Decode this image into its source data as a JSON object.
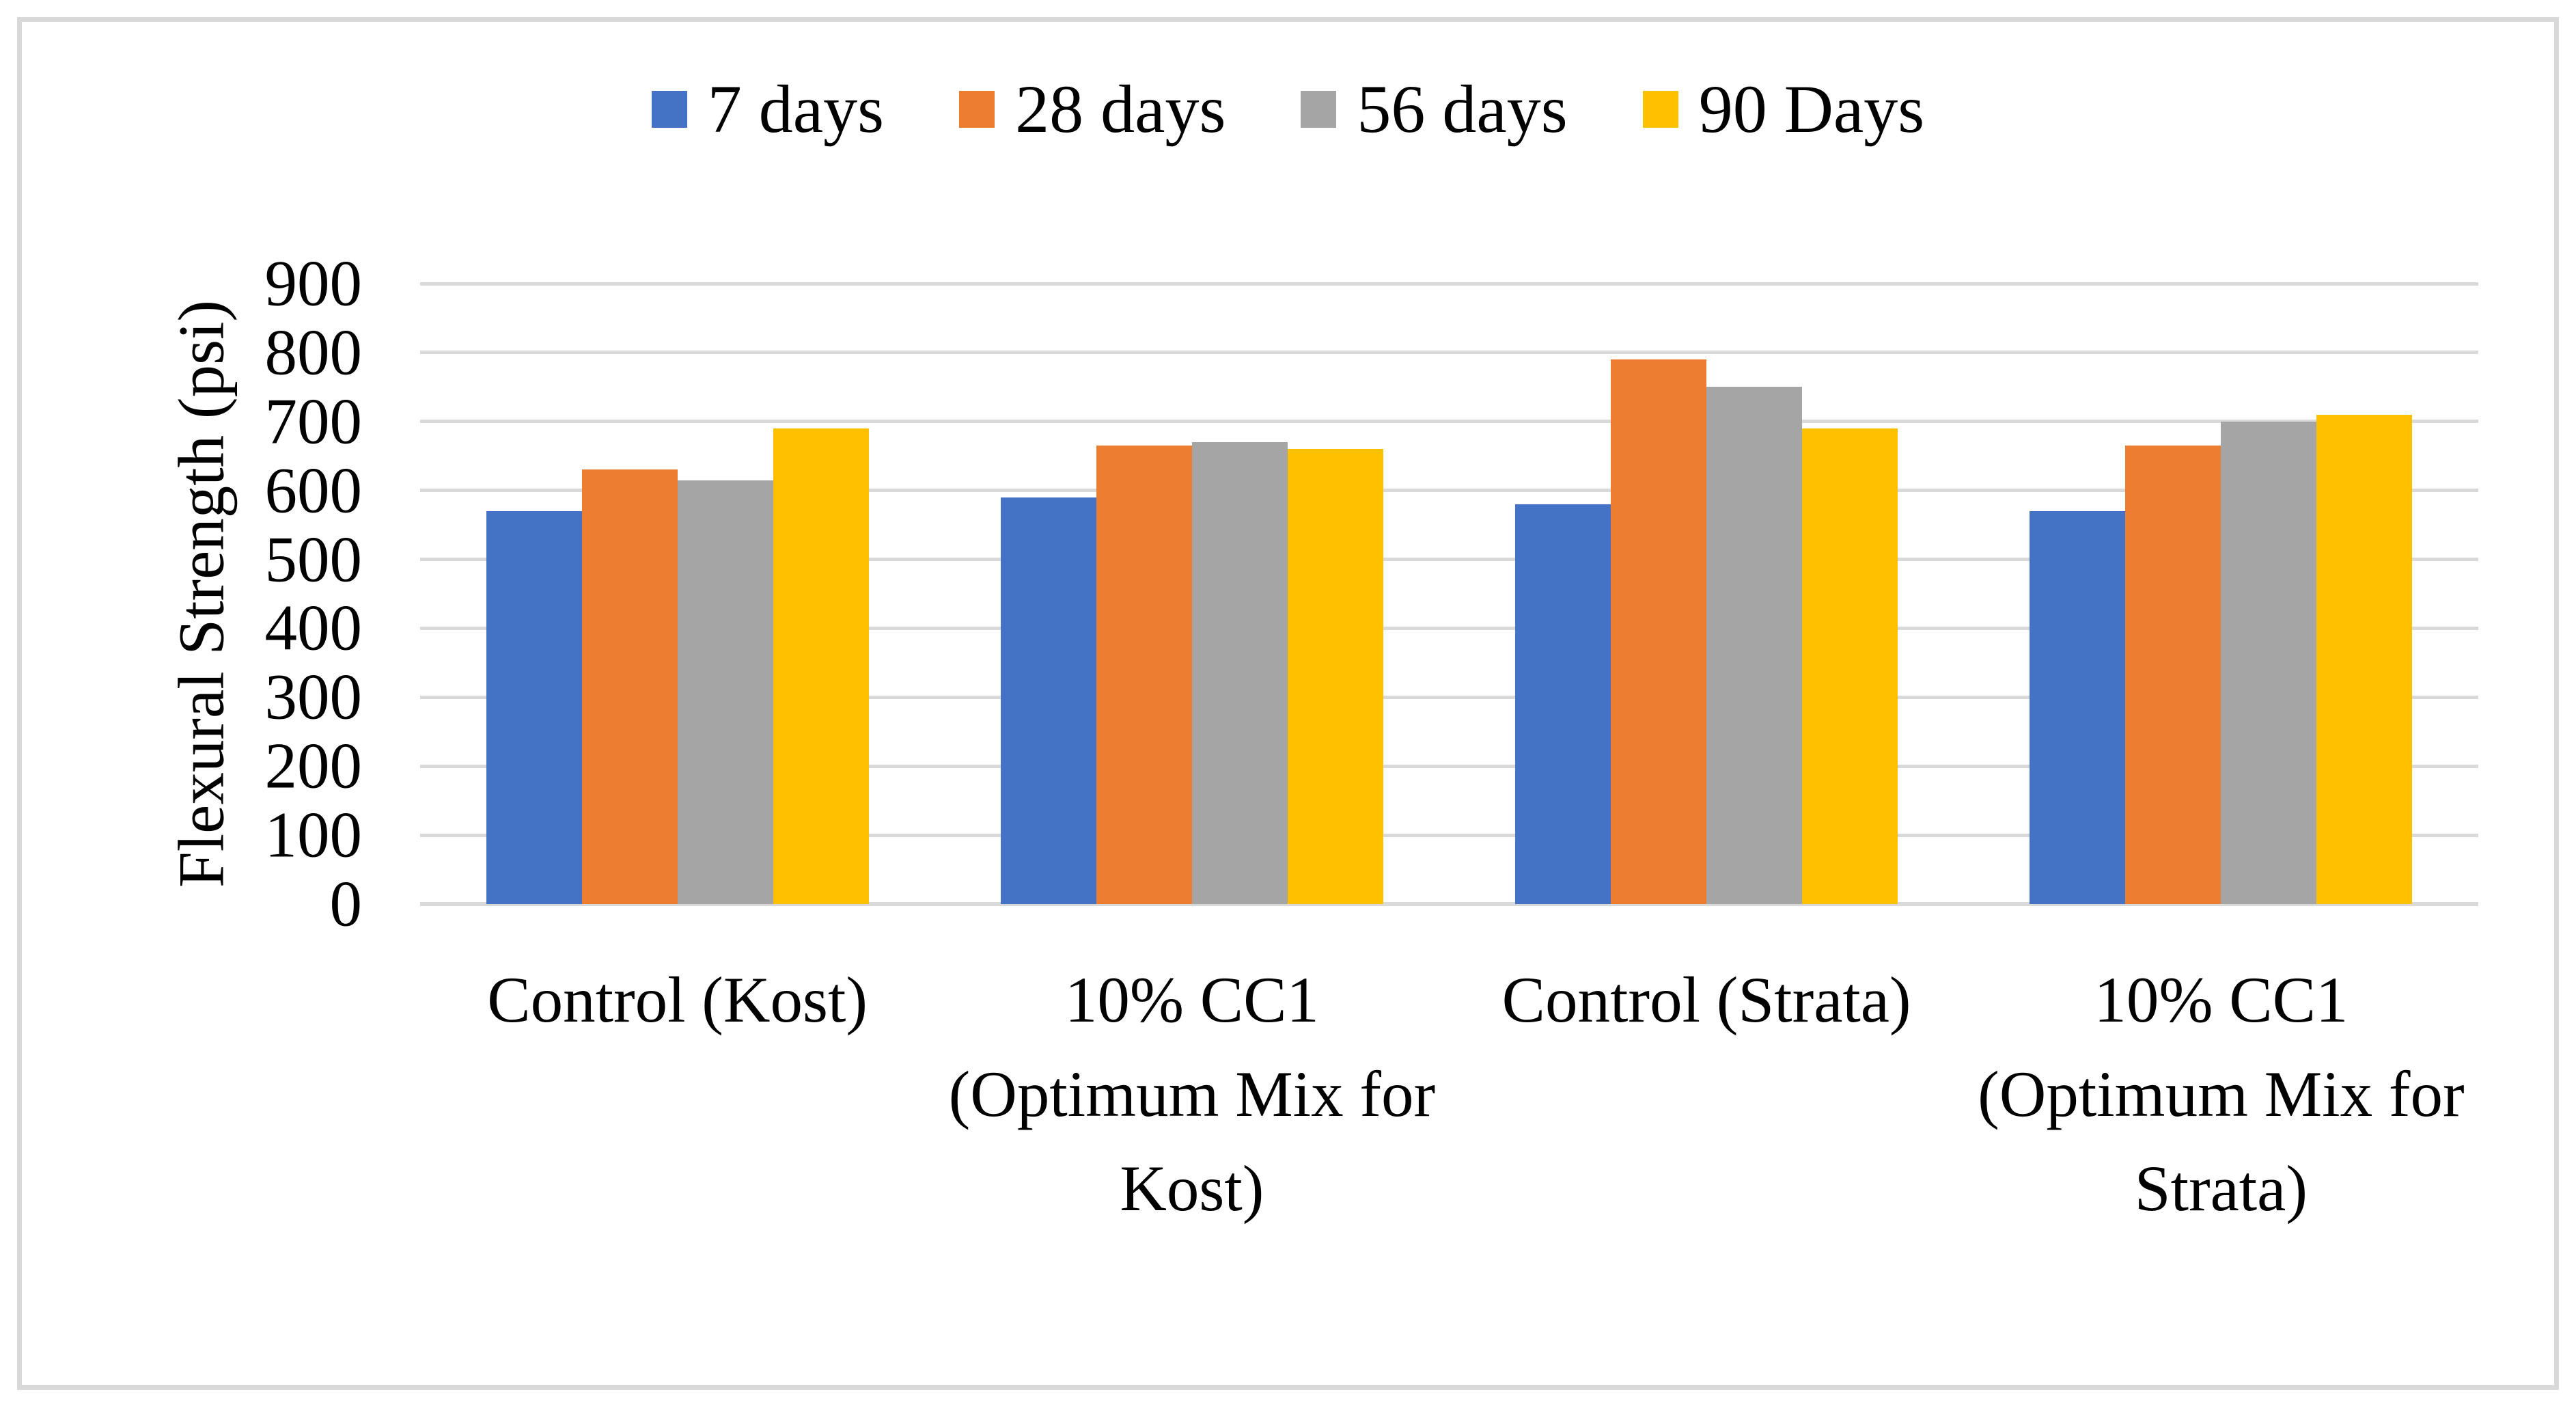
{
  "figure": {
    "background": "#FFFFFF",
    "border_color": "#D9D9D9"
  },
  "legend": {
    "position": "top"
  },
  "y_axis": {
    "title": "Flexural Strength (psi)",
    "tick_labels": [
      "0",
      "100",
      "200",
      "300",
      "400",
      "500",
      "600",
      "700",
      "800",
      "900"
    ]
  },
  "x_axis": {
    "categories_lines": [
      [
        "Control (Kost)"
      ],
      [
        "10% CC1",
        "(Optimum Mix for",
        "Kost)"
      ],
      [
        "Control (Strata)"
      ],
      [
        "10% CC1",
        "(Optimum Mix for",
        "Strata)"
      ]
    ]
  },
  "chart_data": {
    "type": "bar",
    "title": "",
    "xlabel": "",
    "ylabel": "Flexural Strength (psi)",
    "ylim": [
      0,
      900
    ],
    "ytick_step": 100,
    "grid": true,
    "gridline_color": "#D9D9D9",
    "legend_position": "top",
    "categories": [
      "Control (Kost)",
      "10% CC1 (Optimum Mix for Kost)",
      "Control (Strata)",
      "10% CC1 (Optimum Mix for Strata)"
    ],
    "series": [
      {
        "name": "7 days",
        "color": "#4472C4",
        "values": [
          570,
          590,
          580,
          570
        ]
      },
      {
        "name": "28 days",
        "color": "#ED7D31",
        "values": [
          630,
          665,
          790,
          665
        ]
      },
      {
        "name": "56 days",
        "color": "#A5A5A5",
        "values": [
          615,
          670,
          750,
          700
        ]
      },
      {
        "name": "90 Days",
        "color": "#FFC000",
        "values": [
          690,
          660,
          690,
          710
        ]
      }
    ]
  }
}
